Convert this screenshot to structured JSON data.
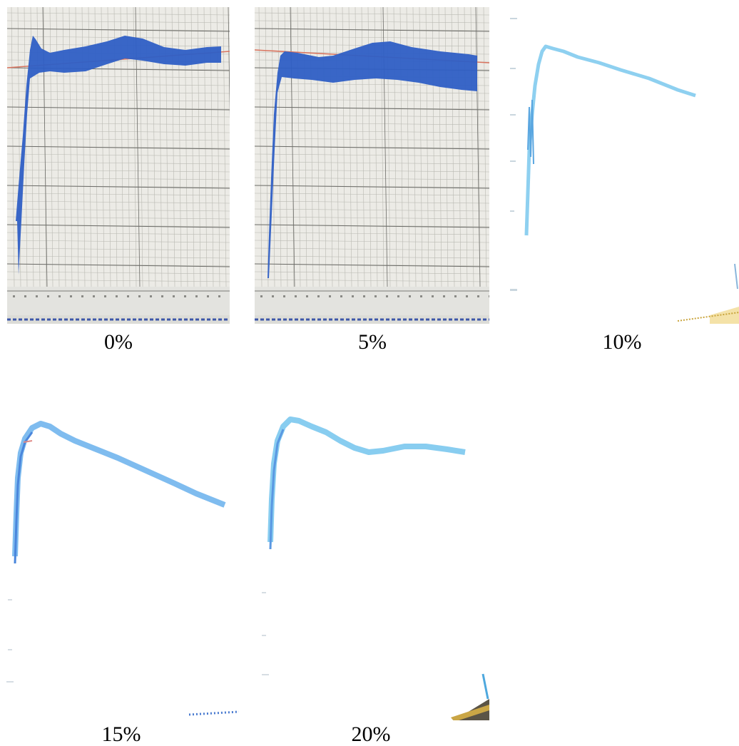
{
  "figure": {
    "panels": [
      {
        "caption": "0%",
        "photo": "strip-chart-recording-grid",
        "trace_color": "#2a52be"
      },
      {
        "caption": "5%",
        "photo": "strip-chart-recording-grid",
        "trace_color": "#2a52be"
      },
      {
        "caption": "10%",
        "photo": "faded-trace-recording",
        "trace_color": "#7ec8ee"
      },
      {
        "caption": "15%",
        "photo": "faded-trace-recording",
        "trace_color": "#6fb4ec"
      },
      {
        "caption": "20%",
        "photo": "faded-trace-recording",
        "trace_color": "#7cc6ee"
      }
    ]
  }
}
